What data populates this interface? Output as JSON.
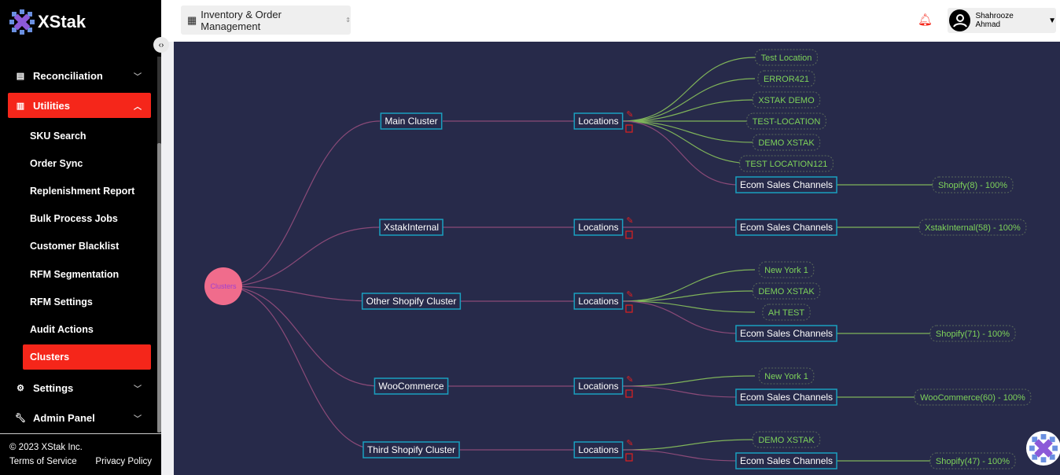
{
  "brand": {
    "name": "XStak"
  },
  "sidebar": {
    "items": [
      {
        "label": "Reconciliation",
        "icon": "reconciliation-icon"
      },
      {
        "label": "Utilities",
        "icon": "utilities-icon",
        "active": true
      },
      {
        "label": "Settings",
        "icon": "gear-icon"
      },
      {
        "label": "Admin Panel",
        "icon": "wrench-icon"
      }
    ],
    "subitems": [
      "SKU Search",
      "Order Sync",
      "Replenishment Report",
      "Bulk Process Jobs",
      "Customer Blacklist",
      "RFM Segmentation",
      "RFM Settings",
      "Audit Actions",
      "Clusters"
    ],
    "active_subitem": "Clusters",
    "footer": {
      "copyright": "© 2023 XStak Inc.",
      "terms": "Terms of Service",
      "privacy": "Privacy Policy"
    }
  },
  "topbar": {
    "app": "Inventory & Order Management",
    "user": "Shahrooze Ahmad"
  },
  "tree": {
    "root": "Clusters",
    "locations_label": "Locations",
    "channels_label": "Ecom Sales Channels",
    "colors": {
      "root": "#f06c8c",
      "link_pink": "#8a4a78",
      "link_green": "#7fb35a",
      "leaf_text": "#7ed35a",
      "node_border": "#1aa0c0"
    },
    "clusters": [
      {
        "name": "Main Cluster",
        "locations": [
          "Test Location",
          "ERROR421",
          "XSTAK DEMO",
          "TEST-LOCATION",
          "DEMO XSTAK",
          "TEST LOCATION121"
        ],
        "channel": "Shopify(8) - 100%"
      },
      {
        "name": "XstakInternal",
        "locations": [],
        "channel": "XstakInternal(58) - 100%"
      },
      {
        "name": "Other Shopify Cluster",
        "locations": [
          "New York 1",
          "DEMO XSTAK",
          "AH TEST"
        ],
        "channel": "Shopify(71) - 100%"
      },
      {
        "name": "WooCommerce",
        "locations": [
          "New York 1"
        ],
        "channel": "WooCommerce(60) - 100%"
      },
      {
        "name": "Third Shopify Cluster",
        "locations": [
          "DEMO XSTAK"
        ],
        "channel": "Shopify(47) - 100%"
      }
    ]
  }
}
